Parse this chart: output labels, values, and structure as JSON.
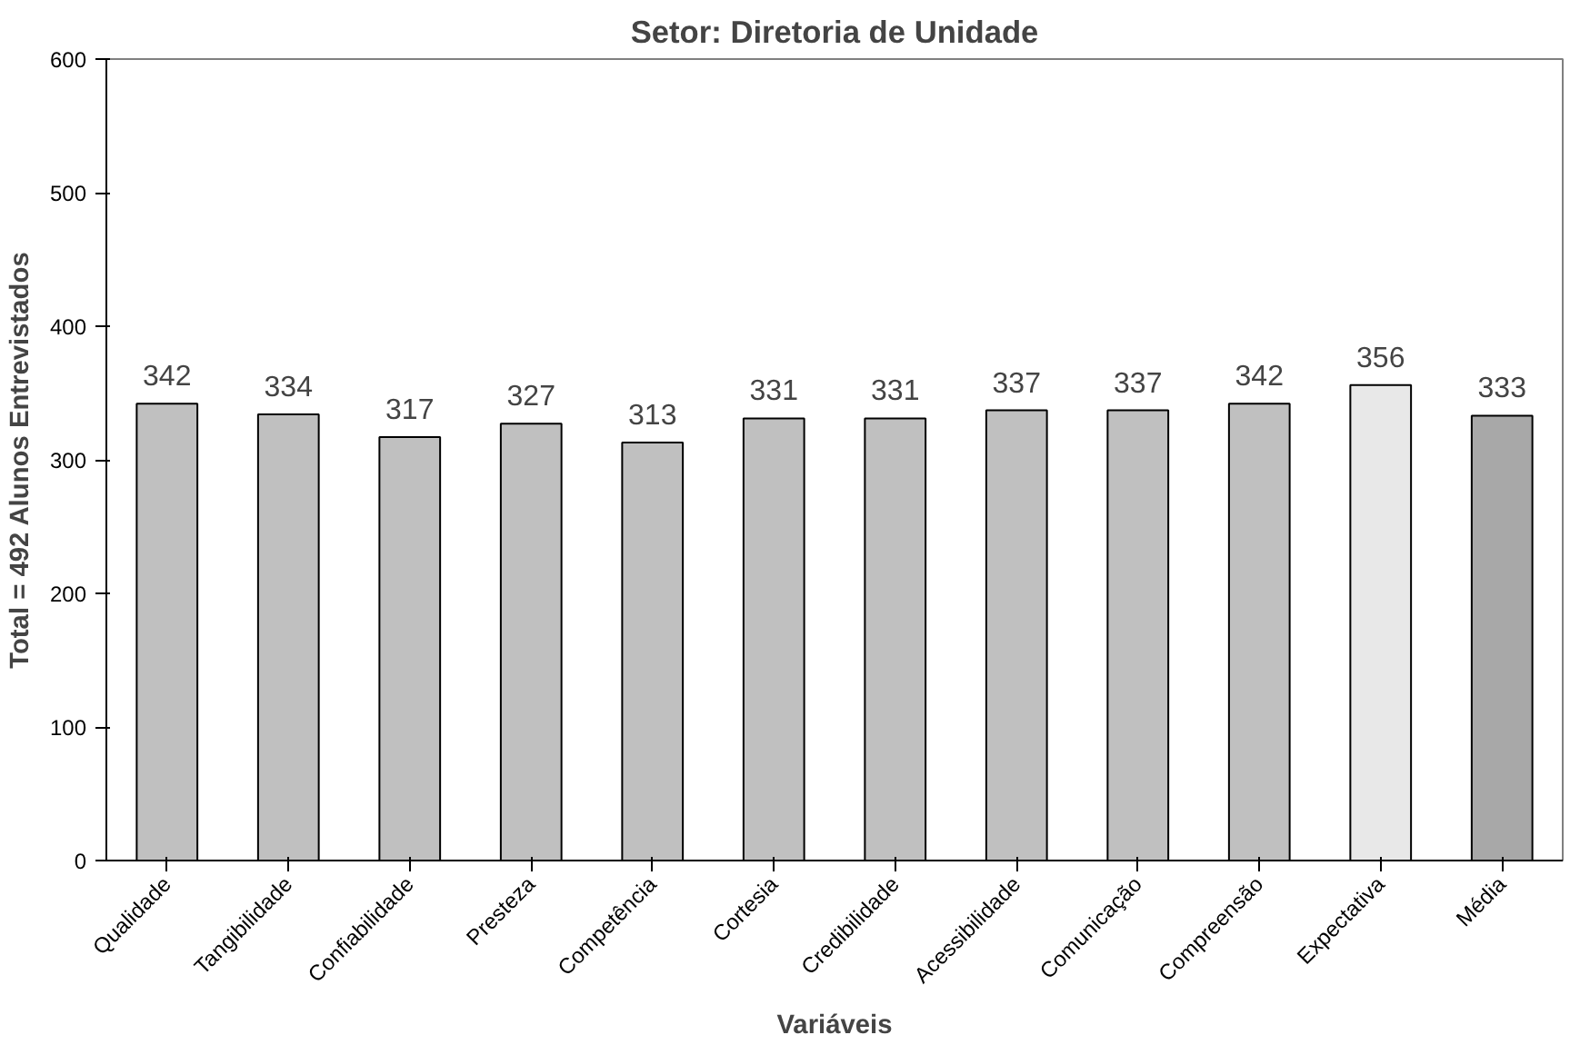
{
  "chart_data": {
    "type": "bar",
    "title": "Setor: Diretoria de Unidade",
    "xlabel": "Variáveis",
    "ylabel": "Total = 492 Alunos Entrevistados",
    "categories": [
      "Qualidade",
      "Tangibilidade",
      "Confiabilidade",
      "Presteza",
      "Competência",
      "Cortesia",
      "Credibilidade",
      "Acessibilidade",
      "Comunicação",
      "Compreensão",
      "Expectativa",
      "Média"
    ],
    "values": [
      342,
      334,
      317,
      327,
      313,
      331,
      331,
      337,
      337,
      342,
      356,
      333
    ],
    "colors": [
      "#c0c0c0",
      "#c0c0c0",
      "#c0c0c0",
      "#c0c0c0",
      "#c0c0c0",
      "#c0c0c0",
      "#c0c0c0",
      "#c0c0c0",
      "#c0c0c0",
      "#c0c0c0",
      "#e8e8e8",
      "#a8a8a8"
    ],
    "ylim": [
      0,
      600
    ],
    "yticks": [
      0,
      100,
      200,
      300,
      400,
      500,
      600
    ],
    "data_labels": true,
    "grid": false
  }
}
